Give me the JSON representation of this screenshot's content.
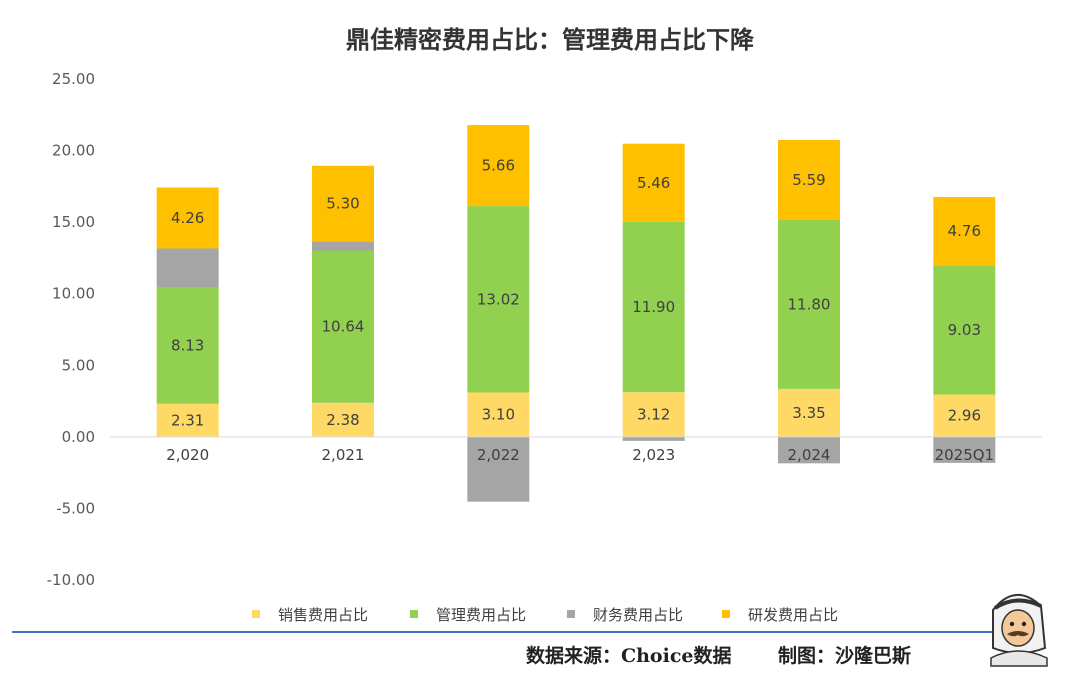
{
  "chart_data": {
    "type": "bar",
    "stacked": true,
    "title": "鼎佳精密费用占比：管理费用占比下降",
    "categories": [
      "2,020",
      "2,021",
      "2,022",
      "2,023",
      "2,024",
      "2025Q1"
    ],
    "ylim": [
      -10,
      25
    ],
    "yticks": [
      "-10.00",
      "-5.00",
      "0.00",
      "5.00",
      "10.00",
      "15.00",
      "20.00",
      "25.00"
    ],
    "grid": false,
    "legend_position": "bottom",
    "series": [
      {
        "name": "销售费用占比",
        "color": "#FFD966",
        "values": [
          2.31,
          2.38,
          3.1,
          3.12,
          3.35,
          2.96
        ],
        "labels": [
          "2.31",
          "2.38",
          "3.10",
          "3.12",
          "3.35",
          "2.96"
        ]
      },
      {
        "name": "管理费用占比",
        "color": "#92D050",
        "values": [
          8.13,
          10.64,
          13.02,
          11.9,
          11.8,
          9.03
        ],
        "labels": [
          "8.13",
          "10.64",
          "13.02",
          "11.90",
          "11.80",
          "9.03"
        ]
      },
      {
        "name": "财务费用占比",
        "color": "#A5A5A5",
        "values": [
          2.72,
          0.62,
          -4.53,
          -0.28,
          -1.85,
          -1.82
        ],
        "labels": [
          "",
          "",
          "",
          "",
          "",
          ""
        ]
      },
      {
        "name": "研发费用占比",
        "color": "#FFC000",
        "values": [
          4.26,
          5.3,
          5.66,
          5.46,
          5.59,
          4.76
        ],
        "labels": [
          "4.26",
          "5.30",
          "5.66",
          "5.46",
          "5.59",
          "4.76"
        ]
      }
    ]
  },
  "footer": {
    "source": "数据来源：Choice数据",
    "made_by": "制图：沙隆巴斯"
  },
  "colors": {
    "footer_line": "#4472C4",
    "axis": "#D9D9D9"
  },
  "icons": {
    "mascot": "cartoon-arab-man-mascot"
  }
}
